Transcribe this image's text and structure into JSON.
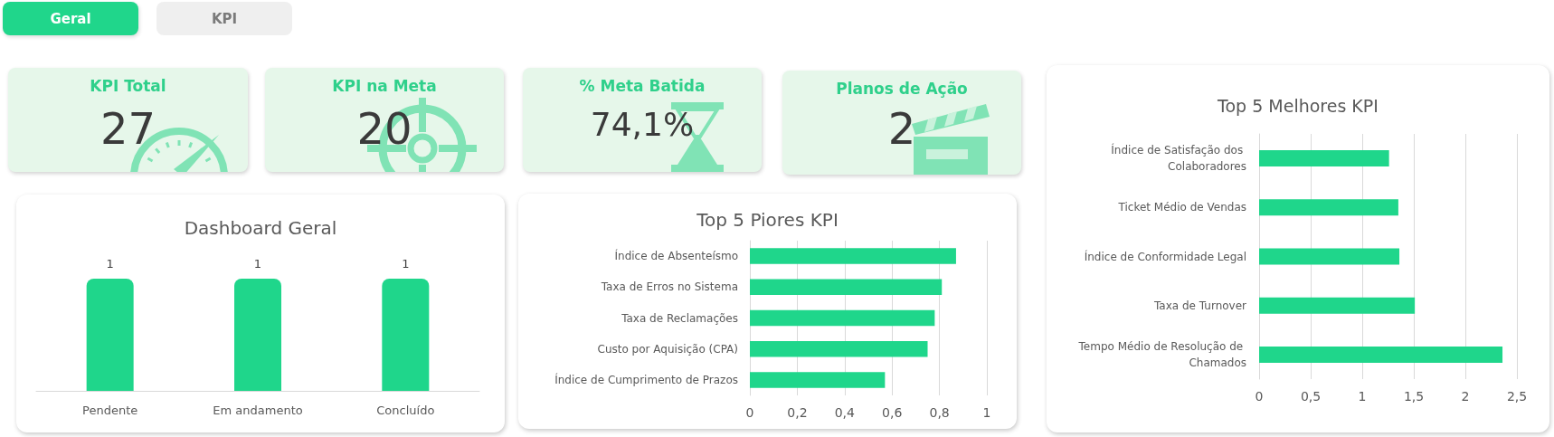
{
  "chart_data": [
    {
      "type": "other",
      "annotations": [
        "Geral",
        "KPI"
      ]
    },
    {
      "type": "other",
      "title": "KPI Total",
      "annotations": [
        "27"
      ]
    },
    {
      "type": "other",
      "title": "KPI na Meta",
      "annotations": [
        "20"
      ]
    },
    {
      "type": "other",
      "title": "% Meta Batida",
      "annotations": [
        "74,1%"
      ]
    },
    {
      "type": "other",
      "title": "Planos de Ação",
      "annotations": [
        "2"
      ]
    },
    {
      "type": "bar",
      "title": "Dashboard Geral",
      "categories": [
        "Pendente",
        "Em andamento",
        "Concluído"
      ],
      "values": [
        1,
        1,
        1
      ],
      "color": "#1fd68b",
      "data_labels": true,
      "tick_labels": "x"
    },
    {
      "type": "bar",
      "orientation": "horizontal",
      "title": "Top 5 Piores KPI",
      "categories": [
        "Índice de Absenteísmo",
        "Taxa de Erros no Sistema",
        "Taxa de Reclamações",
        "Custo por Aquisição (CPA)",
        "Índice de Cumprimento de Prazos"
      ],
      "values": [
        0.87,
        0.81,
        0.78,
        0.75,
        0.57
      ],
      "color": "#1fd68b",
      "xlim": [
        0,
        1
      ],
      "xticks": [
        0,
        {
          "value": 0.2,
          "label": "0,2"
        },
        {
          "value": 0.4,
          "label": "0,4"
        },
        {
          "value": 0.6,
          "label": "0,6"
        },
        {
          "value": 0.8,
          "label": "0,8"
        },
        1
      ],
      "grid": "x"
    },
    {
      "type": "bar",
      "orientation": "horizontal",
      "title": "Top 5 Melhores KPI",
      "categories": [
        "Índice de Satisfação dos Colaboradores",
        "Ticket Médio de Vendas",
        "Índice de Conformidade Legal",
        "Taxa de Turnover",
        "Tempo Médio de Resolução de Chamados"
      ],
      "values": [
        1.26,
        1.35,
        1.36,
        1.51,
        2.36
      ],
      "color": "#1fd68b",
      "xlim": [
        0,
        2.5
      ],
      "xticks": [
        0,
        {
          "value": 0.5,
          "label": "0,5"
        },
        1,
        {
          "value": 1.5,
          "label": "1,5"
        },
        2,
        {
          "value": 2.5,
          "label": "2,5"
        }
      ],
      "grid": "x"
    }
  ]
}
